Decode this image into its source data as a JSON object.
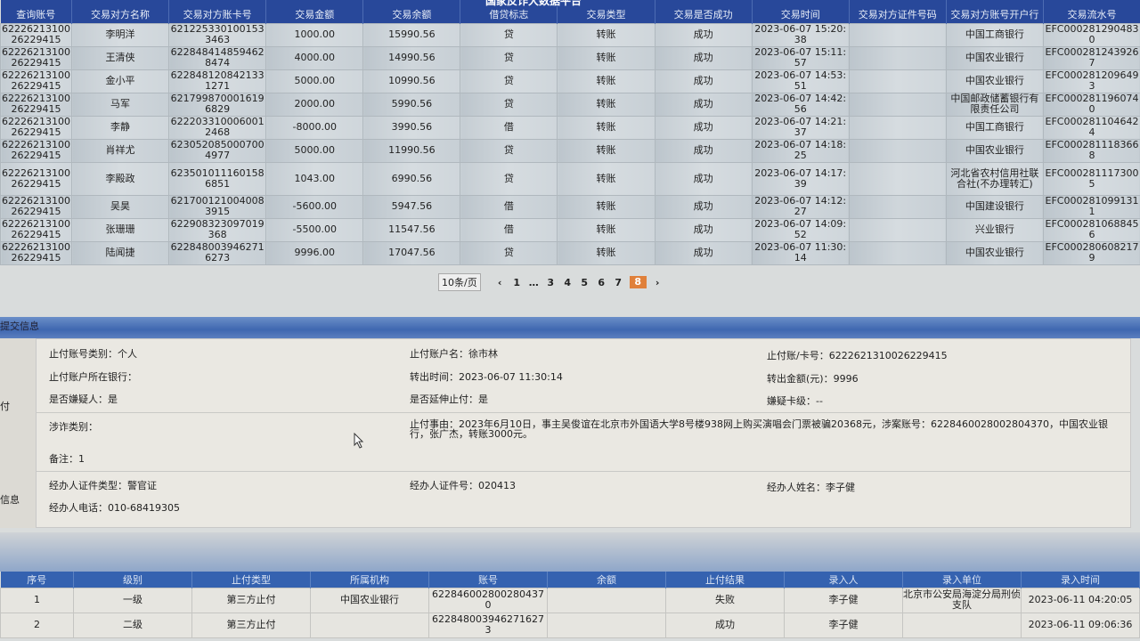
{
  "title": "国家反诈大数据平台",
  "transactions": {
    "headers": [
      "查询账号",
      "交易对方名称",
      "交易对方账卡号",
      "交易金额",
      "交易余额",
      "借贷标志",
      "交易类型",
      "交易是否成功",
      "交易时间",
      "交易对方证件号码",
      "交易对方账号开户行",
      "交易流水号"
    ],
    "rows": [
      [
        "6222621310026229415",
        "李明洋",
        "6212253301001533463",
        "1000.00",
        "15990.56",
        "贷",
        "转账",
        "成功",
        "2023-06-07 15:20:38",
        "",
        "中国工商银行",
        "EFC0002812904830"
      ],
      [
        "6222621310026229415",
        "王清侠",
        "6228484148594628474",
        "4000.00",
        "14990.56",
        "贷",
        "转账",
        "成功",
        "2023-06-07 15:11:57",
        "",
        "中国农业银行",
        "EFC0002812439267"
      ],
      [
        "6222621310026229415",
        "金小平",
        "6228481208421331271",
        "5000.00",
        "10990.56",
        "贷",
        "转账",
        "成功",
        "2023-06-07 14:53:51",
        "",
        "中国农业银行",
        "EFC0002812096493"
      ],
      [
        "6222621310026229415",
        "马军",
        "6217998700016196829",
        "2000.00",
        "5990.56",
        "贷",
        "转账",
        "成功",
        "2023-06-07 14:42:56",
        "",
        "中国邮政储蓄银行有限责任公司",
        "EFC0002811960740"
      ],
      [
        "6222621310026229415",
        "李静",
        "6222033100060012468",
        "-8000.00",
        "3990.56",
        "借",
        "转账",
        "成功",
        "2023-06-07 14:21:37",
        "",
        "中国工商银行",
        "EFC0002811046424"
      ],
      [
        "6222621310026229415",
        "肖祥尤",
        "6230520850007004977",
        "5000.00",
        "11990.56",
        "贷",
        "转账",
        "成功",
        "2023-06-07 14:18:25",
        "",
        "中国农业银行",
        "EFC0002811183668"
      ],
      [
        "6222621310026229415",
        "李殿政",
        "6235010111601586851",
        "1043.00",
        "6990.56",
        "贷",
        "转账",
        "成功",
        "2023-06-07 14:17:39",
        "",
        "河北省农村信用社联合社(不办理转汇)",
        "EFC0002811173005"
      ],
      [
        "6222621310026229415",
        "吴昊",
        "6217001210040083915",
        "-5600.00",
        "5947.56",
        "借",
        "转账",
        "成功",
        "2023-06-07 14:12:27",
        "",
        "中国建设银行",
        "EFC0002810991311"
      ],
      [
        "6222621310026229415",
        "张珊珊",
        "622908323097019368",
        "-5500.00",
        "11547.56",
        "借",
        "转账",
        "成功",
        "2023-06-07 14:09:52",
        "",
        "兴业银行",
        "EFC0002810688456"
      ],
      [
        "6222621310026229415",
        "陆闻捷",
        "6228480039462716273",
        "9996.00",
        "17047.56",
        "贷",
        "转账",
        "成功",
        "2023-06-07 11:30:14",
        "",
        "中国农业银行",
        "EFC0002806082179"
      ]
    ]
  },
  "pagination": {
    "page_size": "10条/页",
    "pages": [
      "1",
      "…",
      "3",
      "4",
      "5",
      "6",
      "7",
      "8"
    ],
    "current": "8",
    "prev": "‹",
    "next": "›"
  },
  "submit_info": {
    "section_title": "提交信息",
    "left_labels": [
      "付",
      "信息"
    ],
    "fields": {
      "acct_type": "止付账号类别：个人",
      "acct_name": "止付账户名：徐市林",
      "acct_no": "止付账/卡号：6222621310026229415",
      "bank": "止付账户所在银行：",
      "out_time": "转出时间：2023-06-07 11:30:14",
      "out_amount": "转出金额(元)：9996",
      "suspect": "是否嫌疑人：是",
      "extend": "是否延伸止付：是",
      "card_level": "嫌疑卡级：--",
      "fraud_type": "涉诈类别：",
      "reason": "止付事由：2023年6月10日，事主吴俊谊在北京市外国语大学8号楼938网上购买演唱会门票被骗20368元，涉案账号：6228460028002804370，中国农业银行，张广杰，转账3000元。",
      "remark": "备注：1",
      "officer_id_type": "经办人证件类型：警官证",
      "officer_id": "经办人证件号：020413",
      "officer_name": "经办人姓名：李子健",
      "officer_phone": "经办人电话：010-68419305"
    }
  },
  "stop_payments": {
    "headers": [
      "序号",
      "级别",
      "止付类型",
      "所属机构",
      "账号",
      "余额",
      "止付结果",
      "录入人",
      "录入单位",
      "录入时间"
    ],
    "rows": [
      [
        "1",
        "一级",
        "第三方止付",
        "中国农业银行",
        "6228460028002804370",
        "",
        "失败",
        "李子健",
        "北京市公安局海淀分局刑侦支队",
        "2023-06-11 04:20:05"
      ],
      [
        "2",
        "二级",
        "第三方止付",
        "",
        "6228480039462716273",
        "",
        "成功",
        "李子健",
        "",
        "2023-06-11 09:06:36"
      ]
    ]
  }
}
